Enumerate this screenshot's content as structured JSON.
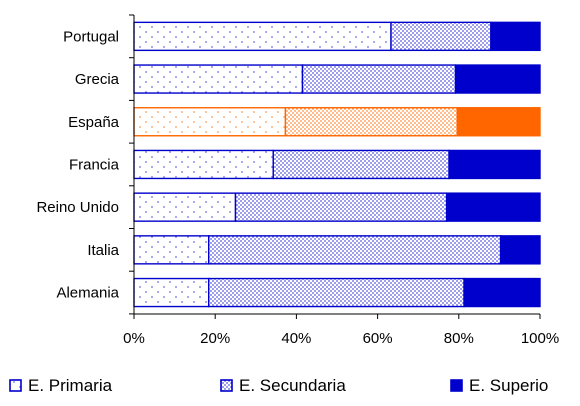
{
  "chart_data": {
    "type": "bar",
    "orientation": "horizontal",
    "stacked": "percent",
    "categories": [
      "Portugal",
      "Grecia",
      "España",
      "Francia",
      "Reino Unido",
      "Italia",
      "Alemania"
    ],
    "series": [
      {
        "name": "E. Primaria",
        "values": [
          63.3,
          41.5,
          37.3,
          34.3,
          25.0,
          18.4,
          18.4
        ]
      },
      {
        "name": "E. Secundaria",
        "values": [
          24.6,
          37.7,
          42.3,
          43.3,
          52.0,
          71.9,
          62.9
        ]
      },
      {
        "name": "E. Superio",
        "values": [
          12.1,
          20.8,
          20.4,
          22.4,
          23.0,
          9.7,
          18.7
        ]
      }
    ],
    "x_ticks": [
      "0%",
      "20%",
      "40%",
      "60%",
      "80%",
      "100%"
    ],
    "xlim": [
      0,
      100
    ],
    "highlighted_category": "España",
    "colors": {
      "default": "#0000cc",
      "highlight": "#ff6600",
      "dot_default": "#6f6fe6",
      "dot_highlight": "#ff9c55"
    },
    "legend_position": "bottom",
    "grid": false
  }
}
